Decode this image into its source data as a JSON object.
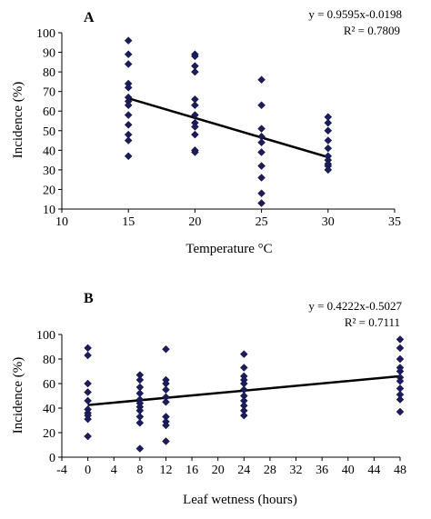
{
  "chart_data": [
    {
      "type": "scatter",
      "panel_label": "A",
      "title": "",
      "xlabel": "Temperature °C",
      "ylabel": "Incidence (%)",
      "xlim": [
        10,
        35
      ],
      "ylim": [
        10,
        100
      ],
      "xticks": [
        10,
        15,
        20,
        25,
        30,
        35
      ],
      "yticks": [
        10,
        20,
        30,
        40,
        50,
        60,
        70,
        80,
        90,
        100
      ],
      "grid": false,
      "equation": "y = 0.9595x-0.0198",
      "r_squared": "R² = 0.7809",
      "trendline": {
        "x1": 15,
        "y1": 66.5,
        "x2": 30,
        "y2": 36.5
      },
      "points": [
        {
          "x": 15,
          "y": 96
        },
        {
          "x": 15,
          "y": 89
        },
        {
          "x": 15,
          "y": 84
        },
        {
          "x": 15,
          "y": 74
        },
        {
          "x": 15,
          "y": 72
        },
        {
          "x": 15,
          "y": 67
        },
        {
          "x": 15,
          "y": 65
        },
        {
          "x": 15,
          "y": 63
        },
        {
          "x": 15,
          "y": 58
        },
        {
          "x": 15,
          "y": 53
        },
        {
          "x": 15,
          "y": 48
        },
        {
          "x": 15,
          "y": 45
        },
        {
          "x": 15,
          "y": 37
        },
        {
          "x": 20,
          "y": 89
        },
        {
          "x": 20,
          "y": 88
        },
        {
          "x": 20,
          "y": 83
        },
        {
          "x": 20,
          "y": 80
        },
        {
          "x": 20,
          "y": 66
        },
        {
          "x": 20,
          "y": 63
        },
        {
          "x": 20,
          "y": 58
        },
        {
          "x": 20,
          "y": 54
        },
        {
          "x": 20,
          "y": 52
        },
        {
          "x": 20,
          "y": 48
        },
        {
          "x": 20,
          "y": 40
        },
        {
          "x": 20,
          "y": 39
        },
        {
          "x": 25,
          "y": 76
        },
        {
          "x": 25,
          "y": 63
        },
        {
          "x": 25,
          "y": 51
        },
        {
          "x": 25,
          "y": 47
        },
        {
          "x": 25,
          "y": 44
        },
        {
          "x": 25,
          "y": 39
        },
        {
          "x": 25,
          "y": 32
        },
        {
          "x": 25,
          "y": 26
        },
        {
          "x": 25,
          "y": 18
        },
        {
          "x": 25,
          "y": 13
        },
        {
          "x": 30,
          "y": 57
        },
        {
          "x": 30,
          "y": 54
        },
        {
          "x": 30,
          "y": 50
        },
        {
          "x": 30,
          "y": 45
        },
        {
          "x": 30,
          "y": 41
        },
        {
          "x": 30,
          "y": 37
        },
        {
          "x": 30,
          "y": 35
        },
        {
          "x": 30,
          "y": 33
        },
        {
          "x": 30,
          "y": 32
        },
        {
          "x": 30,
          "y": 30
        }
      ]
    },
    {
      "type": "scatter",
      "panel_label": "B",
      "title": "",
      "xlabel": "Leaf wetness (hours)",
      "ylabel": "Incidence (%)",
      "xlim": [
        -4,
        48
      ],
      "ylim": [
        0,
        100
      ],
      "xticks": [
        -4,
        0,
        4,
        8,
        12,
        16,
        20,
        24,
        28,
        32,
        36,
        40,
        44,
        48
      ],
      "yticks": [
        0,
        20,
        40,
        60,
        80,
        100
      ],
      "grid": false,
      "equation": "y = 0.4222x-0.5027",
      "r_squared": "R² = 0.7111",
      "trendline": {
        "x1": 0,
        "y1": 42.5,
        "x2": 48,
        "y2": 66
      },
      "points": [
        {
          "x": 0,
          "y": 89
        },
        {
          "x": 0,
          "y": 83
        },
        {
          "x": 0,
          "y": 60
        },
        {
          "x": 0,
          "y": 53
        },
        {
          "x": 0,
          "y": 46
        },
        {
          "x": 0,
          "y": 39
        },
        {
          "x": 0,
          "y": 36
        },
        {
          "x": 0,
          "y": 34
        },
        {
          "x": 0,
          "y": 31
        },
        {
          "x": 0,
          "y": 17
        },
        {
          "x": 8,
          "y": 67
        },
        {
          "x": 8,
          "y": 63
        },
        {
          "x": 8,
          "y": 57
        },
        {
          "x": 8,
          "y": 52
        },
        {
          "x": 8,
          "y": 47
        },
        {
          "x": 8,
          "y": 44
        },
        {
          "x": 8,
          "y": 41
        },
        {
          "x": 8,
          "y": 38
        },
        {
          "x": 8,
          "y": 33
        },
        {
          "x": 8,
          "y": 28
        },
        {
          "x": 8,
          "y": 7
        },
        {
          "x": 12,
          "y": 88
        },
        {
          "x": 12,
          "y": 63
        },
        {
          "x": 12,
          "y": 60
        },
        {
          "x": 12,
          "y": 55
        },
        {
          "x": 12,
          "y": 49
        },
        {
          "x": 12,
          "y": 45
        },
        {
          "x": 12,
          "y": 33
        },
        {
          "x": 12,
          "y": 29
        },
        {
          "x": 12,
          "y": 26
        },
        {
          "x": 12,
          "y": 13
        },
        {
          "x": 24,
          "y": 84
        },
        {
          "x": 24,
          "y": 73
        },
        {
          "x": 24,
          "y": 66
        },
        {
          "x": 24,
          "y": 63
        },
        {
          "x": 24,
          "y": 60
        },
        {
          "x": 24,
          "y": 55
        },
        {
          "x": 24,
          "y": 50
        },
        {
          "x": 24,
          "y": 46
        },
        {
          "x": 24,
          "y": 42
        },
        {
          "x": 24,
          "y": 38
        },
        {
          "x": 24,
          "y": 34
        },
        {
          "x": 48,
          "y": 96
        },
        {
          "x": 48,
          "y": 89
        },
        {
          "x": 48,
          "y": 80
        },
        {
          "x": 48,
          "y": 73
        },
        {
          "x": 48,
          "y": 70
        },
        {
          "x": 48,
          "y": 65
        },
        {
          "x": 48,
          "y": 62
        },
        {
          "x": 48,
          "y": 56
        },
        {
          "x": 48,
          "y": 51
        },
        {
          "x": 48,
          "y": 47
        },
        {
          "x": 48,
          "y": 37
        }
      ]
    }
  ]
}
